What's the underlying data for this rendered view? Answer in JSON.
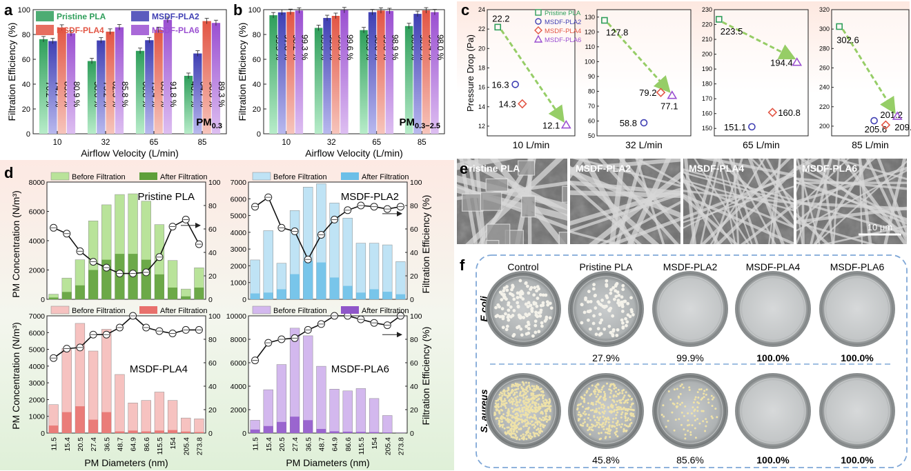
{
  "panel_letters": [
    "a",
    "b",
    "c",
    "d",
    "e",
    "f"
  ],
  "colors": {
    "pristine": "#2e9e5a",
    "pristine_light": "#b7ecc9",
    "pla2": "#3f3fb3",
    "pla2_light": "#b8b8ee",
    "pla4": "#e25544",
    "pla4_light": "#f6c4bb",
    "pla6": "#9a4fd1",
    "pla6_light": "#ddbef1",
    "arrow": "#7cc242",
    "green_bar": "#b9e39a",
    "green_after": "#5e9f3a",
    "blue_bar": "#bfe3f5",
    "blue_after": "#6bbfe8",
    "pink_bar": "#f6c2c0",
    "pink_after": "#e8706c",
    "purple_bar": "#d3b8ee",
    "purple_after": "#8f56c9"
  },
  "chart_data": [
    {
      "panel": "a",
      "type": "bar",
      "xlabel": "Airflow Velocity (L/min)",
      "ylabel": "Filtration Efficiency (%)",
      "annotation": "PM0.3",
      "categories": [
        "10",
        "32",
        "65",
        "85"
      ],
      "ylim": [
        0,
        100
      ],
      "yticks": [
        0,
        20,
        40,
        60,
        80,
        100
      ],
      "series": [
        {
          "name": "Pristine PLA",
          "values": [
            76.2,
            58.6,
            66.8,
            46.7
          ],
          "labels": [
            "76.2 %",
            "58.6 %",
            "66.8 %",
            "46.7 %"
          ]
        },
        {
          "name": "MSDF-PLA2",
          "values": [
            74.7,
            75.2,
            75.4,
            64.7
          ],
          "labels": [
            "74.7 %",
            "75.2 %",
            "75.4 %",
            "64.7 %"
          ]
        },
        {
          "name": "MSDF-PLA4",
          "values": [
            85.6,
            82.3,
            83.7,
            90.8
          ],
          "labels": [
            "85.6 %",
            "82.3 %",
            "83.7 %",
            "90.8 %"
          ]
        },
        {
          "name": "MSDF-PLA6",
          "values": [
            80.9,
            85.8,
            91.8,
            89.3
          ],
          "labels": [
            "80.9 %",
            "85.8 %",
            "91.8 %",
            "89.3 %"
          ]
        }
      ]
    },
    {
      "panel": "b",
      "type": "bar",
      "xlabel": "Airflow Velocity (L/min)",
      "ylabel": "Filtration Efficiency (%)",
      "annotation": "PM0.3−2.5",
      "categories": [
        "10",
        "32",
        "65",
        "85"
      ],
      "ylim": [
        0,
        100
      ],
      "yticks": [
        0,
        20,
        40,
        60,
        80,
        100
      ],
      "series": [
        {
          "name": "Pristine PLA",
          "values": [
            95.5,
            85.3,
            83.5,
            86.8
          ],
          "labels": [
            "95.5 %",
            "85.3 %",
            "83.5 %",
            "86.8 %"
          ]
        },
        {
          "name": "MSDF-PLA2",
          "values": [
            97.8,
            93.3,
            98.0,
            96.6
          ],
          "labels": [
            "97.8 %",
            "93.3 %",
            "98.0 %",
            "96.6 %"
          ]
        },
        {
          "name": "MSDF-PLA4",
          "values": [
            98.2,
            95.0,
            99.3,
            99.4
          ],
          "labels": [
            "98.2 %",
            "95.0 %",
            "99.3 %",
            "99.4 %"
          ]
        },
        {
          "name": "MSDF-PLA6",
          "values": [
            99.3,
            99.6,
            98.9,
            98.0
          ],
          "labels": [
            "99.3 %",
            "99.6 %",
            "98.9 %",
            "98.0 %"
          ]
        }
      ]
    },
    {
      "panel": "c",
      "type": "scatter",
      "ylabel": "Pressure Drop (Pa)",
      "legend": [
        "Pristine PLA",
        "MSDF-PLA2",
        "MSDF-PLA4",
        "MSDF-PLA6"
      ],
      "subplots": [
        {
          "xlabel": "10 L/min",
          "ylim": [
            11,
            24
          ],
          "yticks": [
            12,
            14,
            16,
            18,
            20,
            22,
            24
          ],
          "values": [
            22.2,
            16.3,
            14.3,
            12.1
          ],
          "labels": [
            "22.2",
            "16.3",
            "14.3",
            "12.1"
          ]
        },
        {
          "xlabel": "32 L/min",
          "ylim": [
            50,
            135
          ],
          "yticks": [
            50,
            60,
            70,
            80,
            90,
            100,
            110,
            120,
            130
          ],
          "values": [
            127.8,
            58.8,
            79.2,
            77.1
          ],
          "labels": [
            "127.8",
            "58.8",
            "79.2",
            "77.1"
          ]
        },
        {
          "xlabel": "65 L/min",
          "ylim": [
            145,
            230
          ],
          "yticks": [
            150,
            160,
            170,
            180,
            190,
            200,
            210,
            220,
            230
          ],
          "values": [
            223.5,
            151.1,
            160.8,
            194.4
          ],
          "labels": [
            "223.5",
            "151.1",
            "160.8",
            "194.4"
          ]
        },
        {
          "xlabel": "85 L/min",
          "ylim": [
            190,
            320
          ],
          "yticks": [
            200,
            220,
            240,
            260,
            280,
            300,
            320
          ],
          "values": [
            302.6,
            205.6,
            201.2,
            209.9
          ],
          "labels": [
            "302.6",
            "205.6",
            "201.2",
            "209.9"
          ]
        }
      ]
    },
    {
      "panel": "d",
      "type": "bar",
      "xlabel": "PM Diameters (nm)",
      "ylabel_left": "PM Concentration (N/m³)",
      "ylabel_right": "Filtration Efficiency (%)",
      "categories": [
        "11.5",
        "15.4",
        "20.5",
        "27.4",
        "36.5",
        "48.7",
        "64.9",
        "86.6",
        "115.5",
        "154",
        "205.4",
        "273.8"
      ],
      "legend": [
        "Before Filtration",
        "After Filtration"
      ],
      "subplots": [
        {
          "name": "Pristine PLA",
          "ylim": [
            0,
            8000
          ],
          "yticks": [
            0,
            2000,
            4000,
            6000,
            8000
          ],
          "before": [
            350,
            1450,
            2700,
            5350,
            6450,
            7150,
            7200,
            6700,
            5100,
            2650,
            700,
            2150
          ],
          "after": [
            120,
            500,
            950,
            2000,
            2700,
            3100,
            3100,
            2700,
            1700,
            800,
            200,
            800
          ],
          "efficiency": [
            61,
            56,
            41,
            32,
            27,
            22,
            22,
            23,
            36,
            62,
            68,
            47
          ]
        },
        {
          "name": "MSDF-PLA2",
          "ylim": [
            0,
            7000
          ],
          "yticks": [
            0,
            1000,
            2000,
            3000,
            4000,
            5000,
            6000,
            7000
          ],
          "before": [
            2350,
            4100,
            2150,
            5300,
            6700,
            6900,
            5750,
            4850,
            3350,
            3350,
            3250,
            2250
          ],
          "after": [
            350,
            400,
            600,
            1500,
            2300,
            2200,
            1300,
            800,
            400,
            600,
            450,
            300
          ],
          "efficiency": [
            79,
            87,
            61,
            58,
            34,
            55,
            68,
            76,
            80,
            79,
            77,
            79
          ]
        },
        {
          "name": "MSDF-PLA4",
          "ylim": [
            0,
            7000
          ],
          "yticks": [
            0,
            1000,
            2000,
            3000,
            4000,
            5000,
            6000,
            7000
          ],
          "before": [
            1700,
            5050,
            6550,
            4900,
            6200,
            3500,
            1800,
            1950,
            2450,
            1950,
            900,
            850
          ],
          "after": [
            450,
            1250,
            1600,
            800,
            1250,
            100,
            150,
            100,
            150,
            180,
            90,
            60
          ],
          "efficiency": [
            64,
            72,
            73,
            84,
            84,
            90,
            103,
            90,
            87,
            85,
            88,
            88
          ]
        },
        {
          "name": "MSDF-PLA6",
          "ylim": [
            0,
            10000
          ],
          "yticks": [
            0,
            2000,
            4000,
            6000,
            8000,
            10000
          ],
          "before": [
            1100,
            3700,
            5850,
            8950,
            8300,
            5700,
            3750,
            3600,
            3800,
            2950,
            1500,
            50
          ],
          "after": [
            300,
            600,
            950,
            1400,
            1100,
            350,
            150,
            120,
            100,
            80,
            50,
            10
          ],
          "efficiency": [
            62,
            77,
            80,
            81,
            88,
            93,
            100,
            100,
            97,
            94,
            92,
            100
          ]
        }
      ]
    }
  ],
  "panel_e": {
    "labels": [
      "Pristine PLA",
      "MSDF-PLA2",
      "MSDF-PLA4",
      "MSDF-PLA6"
    ],
    "scale_bar": "10 μm"
  },
  "panel_f": {
    "columns": [
      "Control",
      "Pristine PLA",
      "MSDF-PLA2",
      "MSDF-PLA4",
      "MSDF-PLA6"
    ],
    "rows": [
      {
        "name": "E.coli",
        "values": [
          "",
          "27.9%",
          "99.9%",
          "100.0%",
          "100.0%"
        ],
        "colony_counts": [
          130,
          95,
          0,
          0,
          0
        ]
      },
      {
        "name": "S. aureus",
        "values": [
          "",
          "45.8%",
          "85.6%",
          "100.0%",
          "100.0%"
        ],
        "colony_counts": [
          600,
          330,
          90,
          0,
          0
        ]
      }
    ]
  }
}
